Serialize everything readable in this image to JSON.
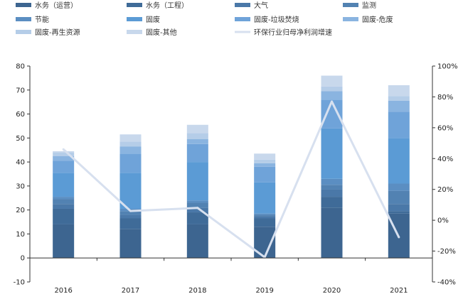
{
  "chart_data": {
    "type": "bar",
    "title": "",
    "xlabel": "",
    "ylabel": "",
    "stacked": true,
    "categories": [
      "2016",
      "2017",
      "2018",
      "2019",
      "2020",
      "2021"
    ],
    "ylim": [
      -10,
      80
    ],
    "yticks": [
      "80",
      "70",
      "60",
      "50",
      "40",
      "30",
      "20",
      "10",
      "0",
      "-10"
    ],
    "y2lim": [
      -40,
      100
    ],
    "y2ticks": [
      "100%",
      "80%",
      "60%",
      "40%",
      "20%",
      "0%",
      "-20%",
      "-40%"
    ],
    "legend_position": "top",
    "series": [
      {
        "name": "水务（运营）",
        "color": "#3d6590",
        "values": [
          14,
          12,
          14,
          13,
          21,
          18.5
        ]
      },
      {
        "name": "水务（工程）",
        "color": "#3f6b98",
        "values": [
          6.5,
          4.5,
          5,
          3.5,
          4.5,
          1
        ]
      },
      {
        "name": "大气",
        "color": "#4a78a8",
        "values": [
          2,
          1.5,
          2,
          1,
          3,
          3
        ]
      },
      {
        "name": "监测",
        "color": "#5282b2",
        "values": [
          2,
          1.5,
          2,
          0.5,
          2,
          5.5
        ]
      },
      {
        "name": "节能",
        "color": "#5b8ec2",
        "values": [
          1,
          1,
          1,
          0.5,
          2.5,
          3
        ]
      },
      {
        "name": "固废",
        "color": "#5b9bd5",
        "values": [
          10,
          15,
          16,
          13,
          21,
          19
        ]
      },
      {
        "name": "固废-垃圾焚烧",
        "color": "#6fa3d9",
        "values": [
          5,
          8,
          7.5,
          6.5,
          12,
          11
        ]
      },
      {
        "name": "固废-危废",
        "color": "#8ab4e0",
        "values": [
          2,
          3,
          2,
          1.5,
          3.5,
          4.5
        ]
      },
      {
        "name": "固废-再生资源",
        "color": "#b5cde8",
        "values": [
          1.5,
          2,
          2.5,
          1.5,
          2,
          2
        ]
      },
      {
        "name": "固废-其他",
        "color": "#c8d8ec",
        "values": [
          0.5,
          3,
          3.5,
          2.5,
          4.5,
          4.5
        ]
      }
    ],
    "line_series": {
      "name": "环保行业归母净利润增速",
      "axis": "right",
      "color": "#d7e0ef",
      "values": [
        46,
        6,
        8,
        -24,
        77,
        -11
      ]
    }
  }
}
